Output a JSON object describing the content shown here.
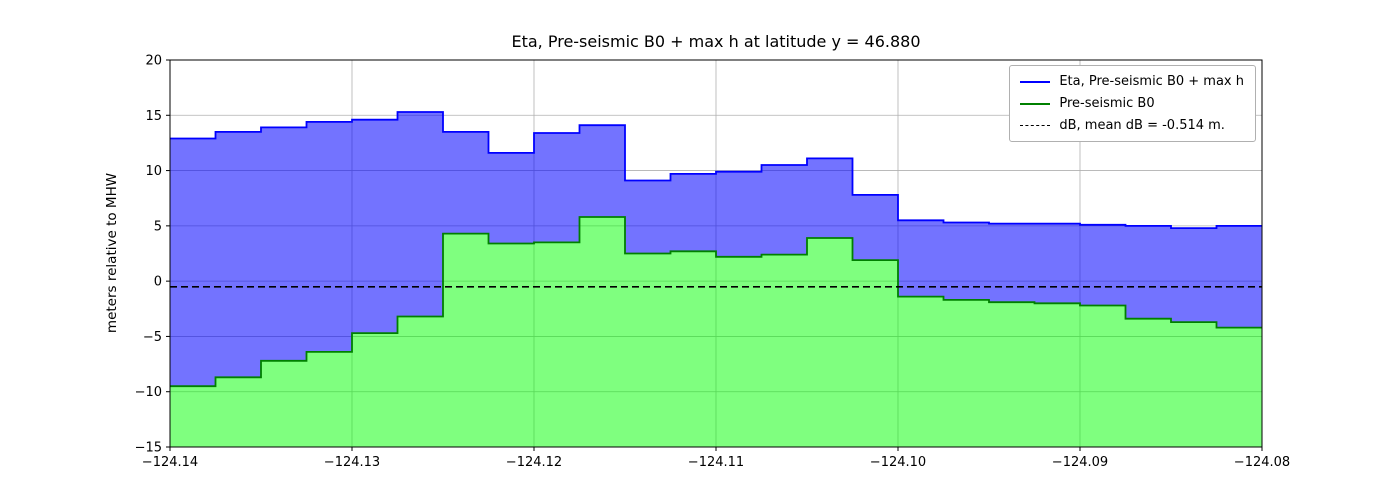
{
  "figure": {
    "title": "Eta, Pre-seismic B0 + max h at latitude y = 46.880",
    "ylabel": "meters relative to MHW",
    "background_color": "#ffffff"
  },
  "chart_data": {
    "type": "area",
    "title": "Eta, Pre-seismic B0 + max h at latitude y = 46.880",
    "xlabel": "",
    "ylabel": "meters relative to MHW",
    "xlim": [
      -124.14,
      -124.08
    ],
    "ylim": [
      -15,
      20
    ],
    "grid": true,
    "grid_color": "#b0b0b0",
    "x_ticks": [
      -124.14,
      -124.13,
      -124.12,
      -124.11,
      -124.1,
      -124.09,
      -124.08
    ],
    "x_tick_labels": [
      "−124.14",
      "−124.13",
      "−124.12",
      "−124.11",
      "−124.10",
      "−124.09",
      "−124.08"
    ],
    "y_ticks": [
      -15,
      -10,
      -5,
      0,
      5,
      10,
      15,
      20
    ],
    "y_tick_labels": [
      "−15",
      "−10",
      "−5",
      "0",
      "5",
      "10",
      "15",
      "20"
    ],
    "x_edges": [
      -124.14,
      -124.1375,
      -124.135,
      -124.1325,
      -124.13,
      -124.1275,
      -124.125,
      -124.1225,
      -124.12,
      -124.1175,
      -124.115,
      -124.1125,
      -124.11,
      -124.1075,
      -124.105,
      -124.1025,
      -124.1,
      -124.0975,
      -124.095,
      -124.0925,
      -124.09,
      -124.0875,
      -124.085,
      -124.0825,
      -124.08
    ],
    "series": [
      {
        "name": "Eta, Pre-seismic B0 + max h",
        "line_color": "#0000ff",
        "fill_color": "rgba(0,0,255,0.55)",
        "values": [
          12.9,
          13.5,
          13.9,
          14.4,
          14.6,
          15.3,
          13.5,
          11.6,
          13.4,
          14.1,
          9.1,
          9.7,
          9.9,
          10.5,
          11.1,
          7.8,
          5.5,
          5.3,
          5.2,
          5.2,
          5.1,
          5.0,
          4.8,
          5.0
        ]
      },
      {
        "name": "Pre-seismic B0",
        "line_color": "#008000",
        "fill_color": "rgba(0,255,0,0.5)",
        "values": [
          -9.5,
          -8.7,
          -7.2,
          -6.4,
          -4.7,
          -3.2,
          4.3,
          3.4,
          3.5,
          5.8,
          2.5,
          2.7,
          2.2,
          2.4,
          3.9,
          1.9,
          -1.4,
          -1.7,
          -1.9,
          -2.0,
          -2.2,
          -3.4,
          -3.7,
          -4.2
        ]
      }
    ],
    "reference_line": {
      "label": "dB, mean dB = -0.514 m.",
      "value": -0.514,
      "color": "#000000",
      "style": "dashed"
    },
    "legend": {
      "position": "upper right",
      "entries": [
        {
          "label": "Eta, Pre-seismic B0 + max h",
          "color": "#0000ff",
          "style": "solid"
        },
        {
          "label": "Pre-seismic B0",
          "color": "#008000",
          "style": "solid"
        },
        {
          "label": "dB, mean dB = -0.514 m.",
          "color": "#000000",
          "style": "dashed"
        }
      ]
    }
  }
}
